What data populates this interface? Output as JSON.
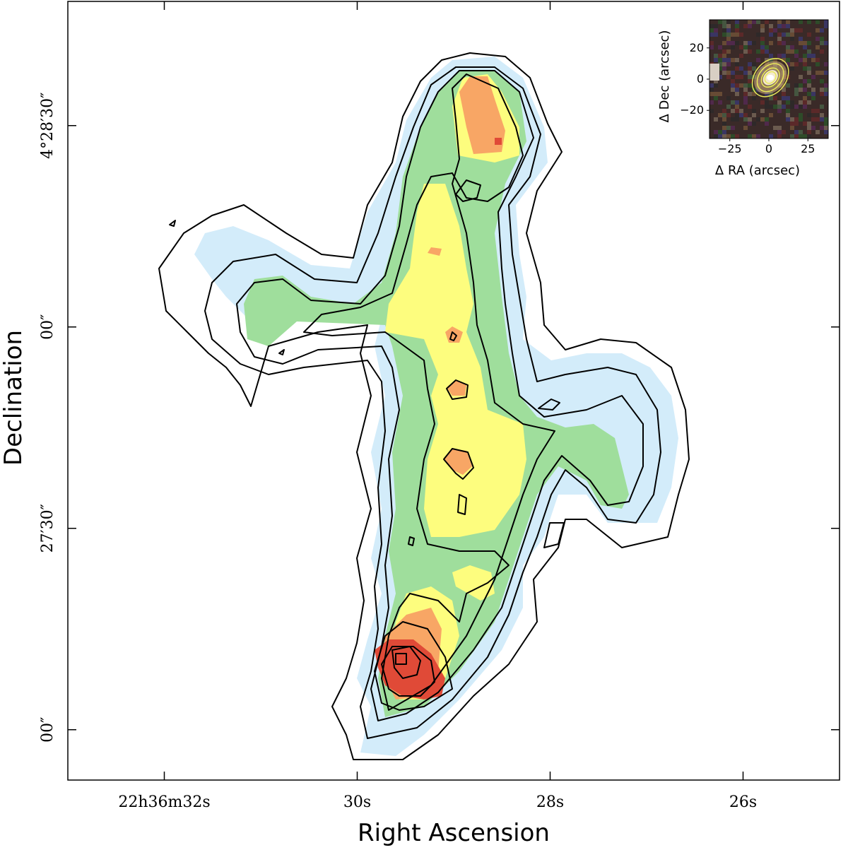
{
  "chart_data": [
    {
      "type": "contour",
      "title": "",
      "xlabel": "Right Ascension",
      "ylabel": "Declination",
      "x_ticks": [
        {
          "ra_s": 32,
          "label": "22h36m32s"
        },
        {
          "ra_s": 30,
          "label": "30s"
        },
        {
          "ra_s": 28,
          "label": "28s"
        },
        {
          "ra_s": 26,
          "label": "26s"
        }
      ],
      "y_ticks": [
        {
          "dec_arcsec": 90,
          "label": "4°28′30″"
        },
        {
          "dec_arcsec": 60,
          "label": "00″"
        },
        {
          "dec_arcsec": 30,
          "label": "27′30″"
        },
        {
          "dec_arcsec": 0,
          "label": "00″"
        }
      ],
      "xlim_ra_s": [
        33,
        25
      ],
      "ylim_dec_arcsec": [
        -7.5,
        108.5
      ],
      "grid": false,
      "colors": {
        "level_1": "#d3ecfa",
        "level_2": "#9fde9c",
        "level_3": "#fdfd7e",
        "level_4": "#f8a665",
        "level_5": "#e04a37",
        "contour": "#000000"
      }
    },
    {
      "type": "image",
      "xlabel": "Δ RA (arcsec)",
      "ylabel": "Δ Dec (arcsec)",
      "x_ticks": [
        -25,
        0,
        25
      ],
      "y_ticks": [
        20,
        0,
        -20
      ],
      "x_tick_labels": [
        "−25",
        "0",
        "25"
      ],
      "y_tick_labels": [
        "20",
        "0",
        "−20"
      ],
      "xlim": [
        -38,
        38
      ],
      "ylim": [
        -38,
        38
      ],
      "colors": {
        "contour": "#e8e85a",
        "core": "#ffffff",
        "noise": "#3a2a28"
      }
    }
  ]
}
